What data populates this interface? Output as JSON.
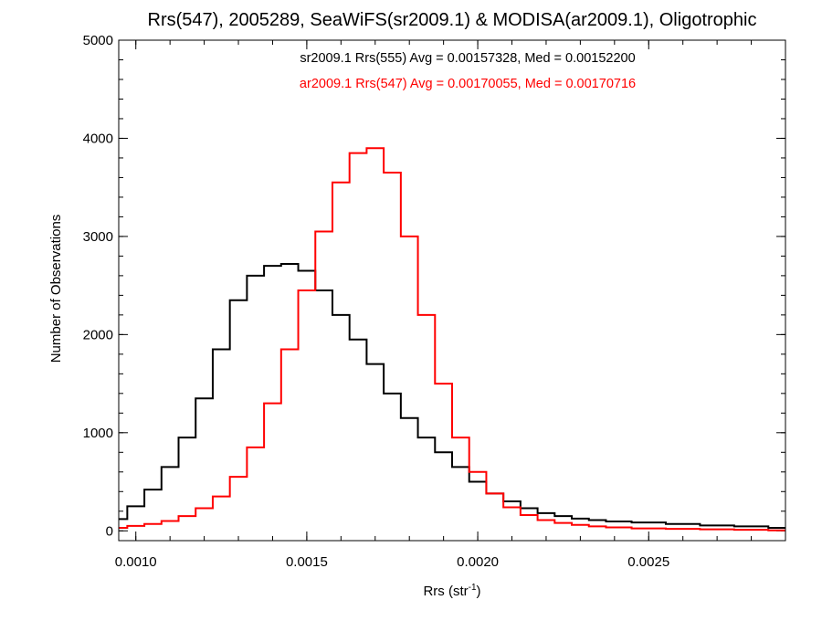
{
  "chart_data": {
    "type": "line",
    "title": "Rrs(547), 2005289, SeaWiFS(sr2009.1) & MODISA(ar2009.1), Oligotrophic",
    "xlabel": "Rrs (str",
    "xlabel_sup": "-1",
    "xlabel_close": ")",
    "ylabel": "Number of Observations",
    "xlim": [
      0.00095,
      0.0029
    ],
    "ylim": [
      -100,
      5000
    ],
    "x_ticks": [
      0.001,
      0.0015,
      0.002,
      0.0025
    ],
    "x_tick_labels": [
      "0.0010",
      "0.0015",
      "0.0020",
      "0.0025"
    ],
    "y_ticks": [
      0,
      1000,
      2000,
      3000,
      4000,
      5000
    ],
    "y_tick_labels": [
      "0",
      "1000",
      "2000",
      "3000",
      "4000",
      "5000"
    ],
    "grid": false,
    "step": true,
    "colors": {
      "series_a": "#000000",
      "series_b": "#ff0000",
      "axis": "#000000"
    },
    "annotations": [
      {
        "text": "sr2009.1 Rrs(555) Avg = 0.00157328, Med = 0.00152200",
        "color": "#000000"
      },
      {
        "text": "ar2009.1 Rrs(547) Avg = 0.00170055, Med = 0.00170716",
        "color": "#ff0000"
      }
    ],
    "series": [
      {
        "color": "#000000",
        "x": [
          0.00095,
          0.001,
          0.00105,
          0.0011,
          0.00115,
          0.0012,
          0.00125,
          0.0013,
          0.00135,
          0.0014,
          0.00145,
          0.0015,
          0.00155,
          0.0016,
          0.00165,
          0.0017,
          0.00175,
          0.0018,
          0.00185,
          0.0019,
          0.00195,
          0.002,
          0.00205,
          0.0021,
          0.00215,
          0.0022,
          0.00225,
          0.0023,
          0.00235,
          0.0024,
          0.0025,
          0.0026,
          0.0027,
          0.0028,
          0.0029
        ],
        "y": [
          120,
          250,
          420,
          650,
          950,
          1350,
          1850,
          2350,
          2600,
          2700,
          2720,
          2650,
          2450,
          2200,
          1950,
          1700,
          1400,
          1150,
          950,
          800,
          650,
          500,
          380,
          300,
          230,
          180,
          150,
          125,
          110,
          95,
          85,
          70,
          55,
          45,
          30
        ]
      },
      {
        "color": "#ff0000",
        "x": [
          0.00095,
          0.001,
          0.00105,
          0.0011,
          0.00115,
          0.0012,
          0.00125,
          0.0013,
          0.00135,
          0.0014,
          0.00145,
          0.0015,
          0.00155,
          0.0016,
          0.00165,
          0.0017,
          0.00175,
          0.0018,
          0.00185,
          0.0019,
          0.00195,
          0.002,
          0.00205,
          0.0021,
          0.00215,
          0.0022,
          0.00225,
          0.0023,
          0.00235,
          0.0024,
          0.0025,
          0.0026,
          0.0027,
          0.0028,
          0.0029
        ],
        "y": [
          30,
          50,
          70,
          100,
          150,
          230,
          350,
          550,
          850,
          1300,
          1850,
          2450,
          3050,
          3550,
          3850,
          3900,
          3650,
          3000,
          2200,
          1500,
          950,
          600,
          380,
          240,
          160,
          110,
          80,
          60,
          45,
          35,
          25,
          20,
          15,
          10,
          5
        ]
      }
    ]
  }
}
